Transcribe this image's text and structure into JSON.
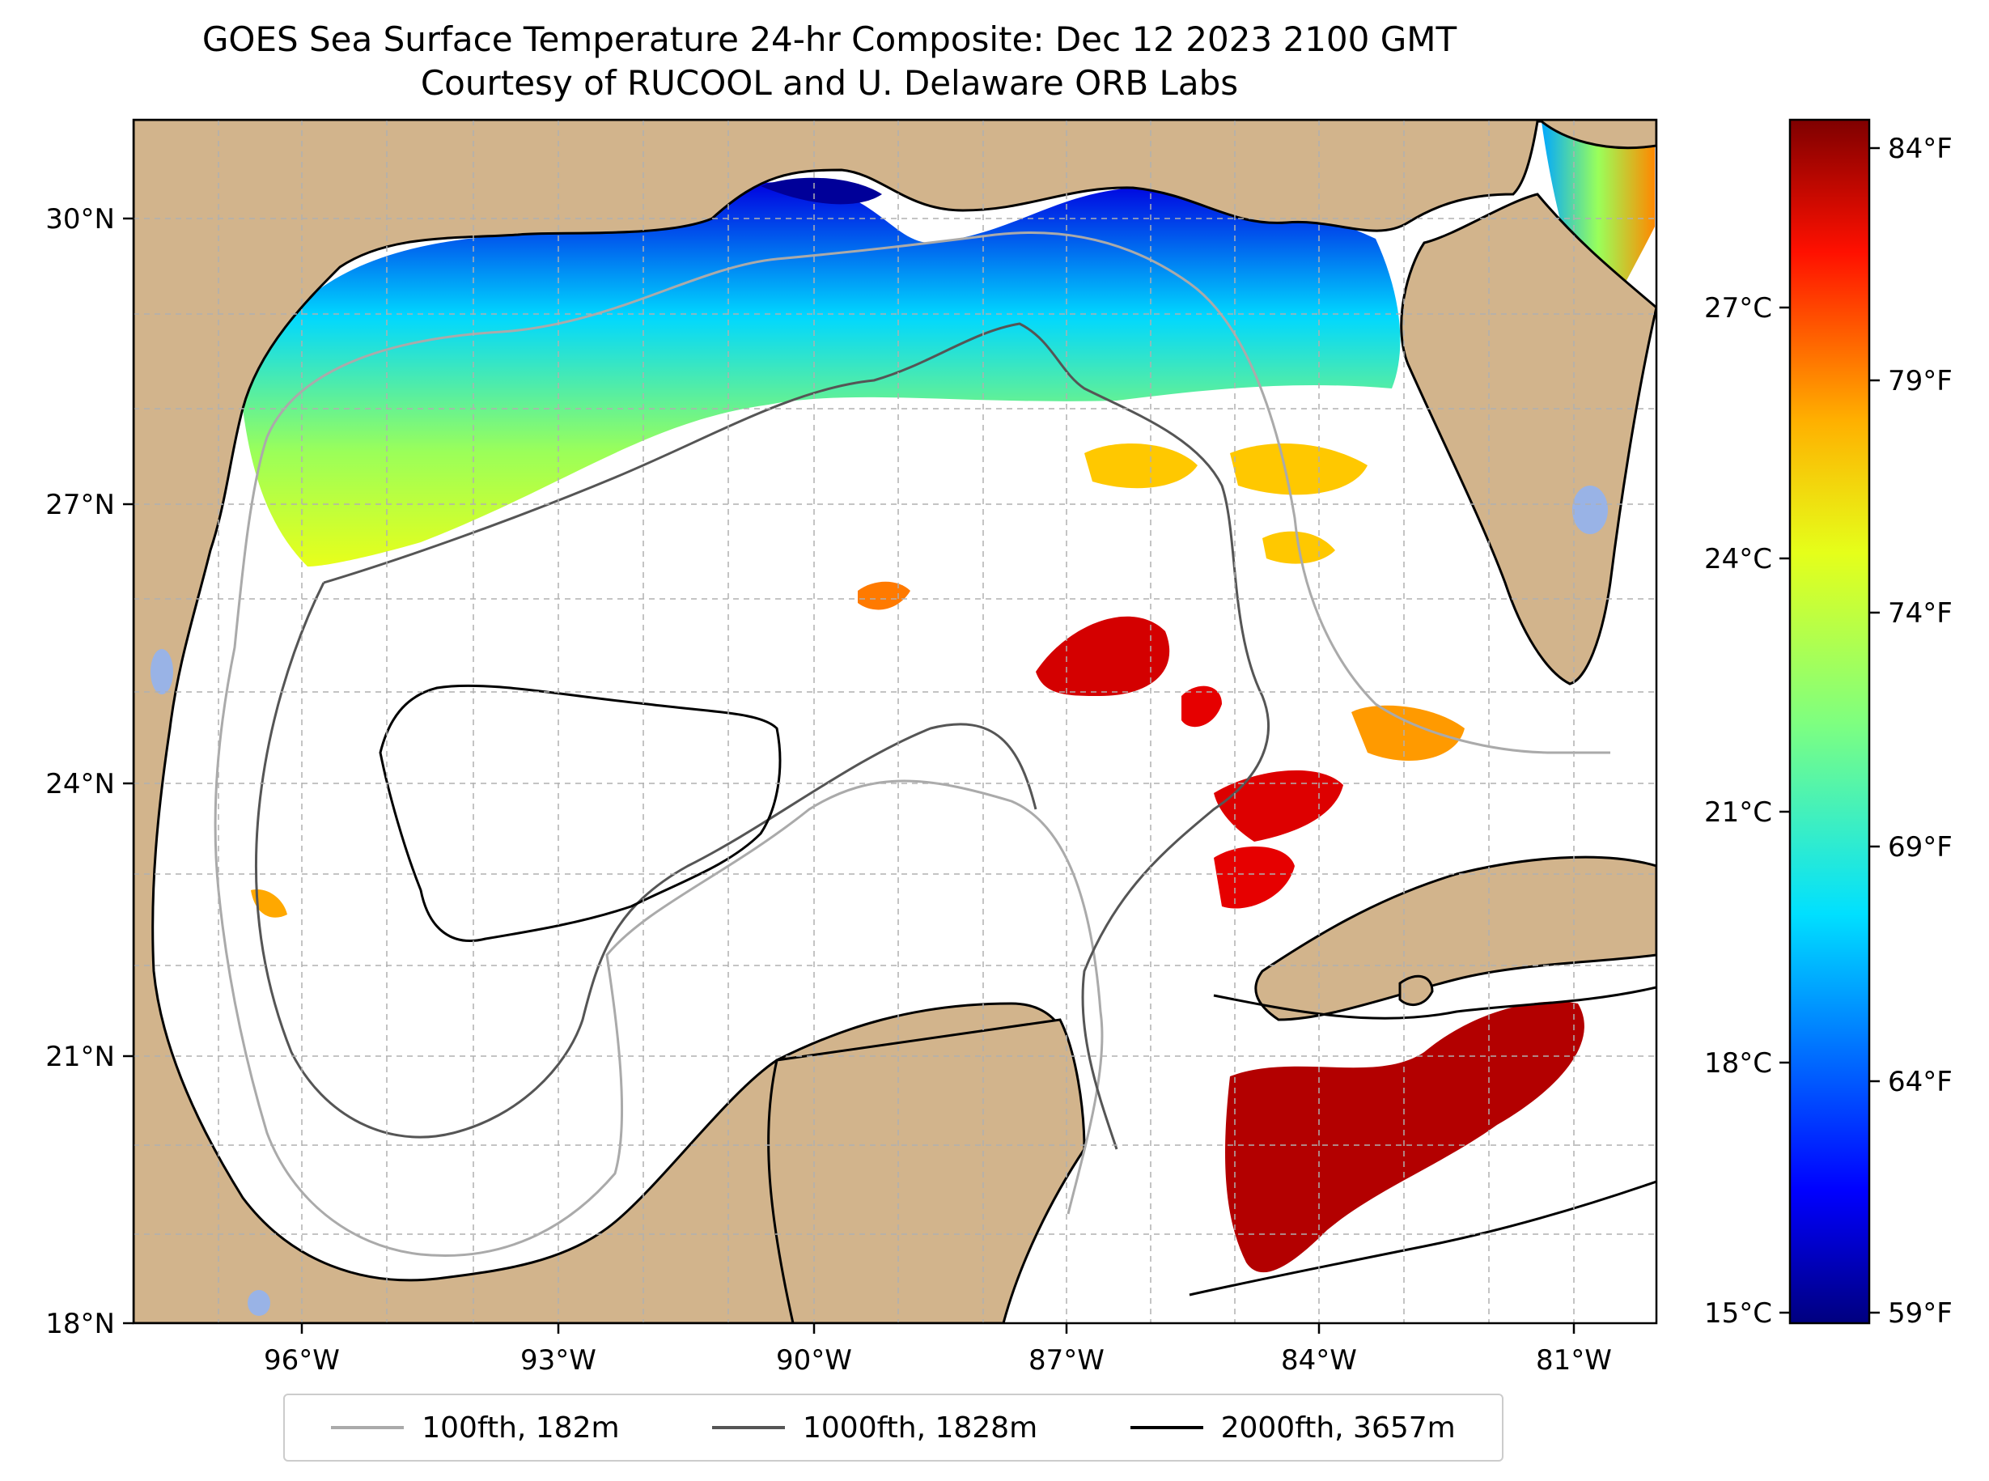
{
  "title": {
    "line1": "GOES Sea Surface Temperature 24-hr Composite: Dec 12 2023 2100 GMT",
    "line2": "Courtesy of RUCOOL and U. Delaware ORB Labs"
  },
  "axes": {
    "lat_ticks": [
      "30°N",
      "27°N",
      "24°N",
      "21°N",
      "18°N"
    ],
    "lon_ticks": [
      "96°W",
      "93°W",
      "90°W",
      "87°W",
      "84°W",
      "81°W"
    ],
    "extent": {
      "lon_min": -98,
      "lon_max": -80.5,
      "lat_min": 18,
      "lat_max": 31
    }
  },
  "colorbar": {
    "celsius_ticks": [
      "27°C",
      "24°C",
      "21°C",
      "18°C",
      "15°C"
    ],
    "fahrenheit_ticks": [
      "84°F",
      "79°F",
      "74°F",
      "69°F",
      "64°F",
      "59°F"
    ],
    "colormap": "jet",
    "range_c": [
      15,
      29
    ]
  },
  "legend": {
    "entries": [
      {
        "label": "100fth, 182m",
        "color": "#aaaaaa"
      },
      {
        "label": "1000fth, 1828m",
        "color": "#555555"
      },
      {
        "label": "2000fth, 3657m",
        "color": "#000000"
      }
    ]
  },
  "colors": {
    "land": "#d2b48c",
    "water": "#ffffff",
    "lakes": "#99b3e6",
    "grid": "#b0b0b0"
  }
}
